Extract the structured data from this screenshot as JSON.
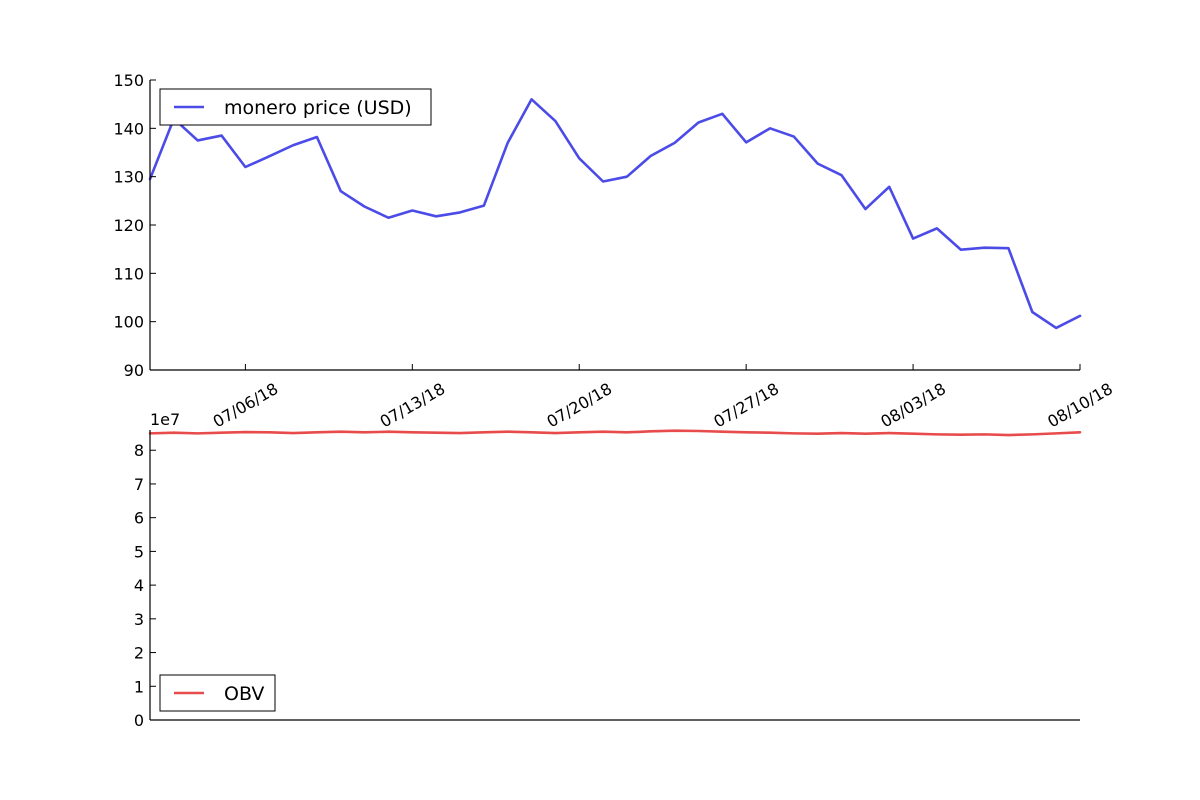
{
  "chart_data": [
    {
      "type": "line",
      "title": "",
      "xlabel": "",
      "ylabel": "",
      "x_tick_labels": [
        "07/06/18",
        "07/13/18",
        "07/20/18",
        "07/27/18",
        "08/03/18",
        "08/10/18"
      ],
      "x_tick_positions": [
        4,
        11,
        18,
        25,
        32,
        39
      ],
      "xlim": [
        0,
        39
      ],
      "ylim": [
        90,
        150
      ],
      "y_ticks": [
        90,
        100,
        110,
        120,
        130,
        140,
        150
      ],
      "grid": false,
      "legend_position": "upper-left",
      "series": [
        {
          "name": "monero price (USD)",
          "color": "#4b4be8",
          "x": [
            0,
            1,
            2,
            3,
            4,
            5,
            6,
            7,
            8,
            9,
            10,
            11,
            12,
            13,
            14,
            15,
            16,
            17,
            18,
            19,
            20,
            21,
            22,
            23,
            24,
            25,
            26,
            27,
            28,
            29,
            30,
            31,
            32,
            33,
            34,
            35,
            36,
            37,
            38,
            39
          ],
          "y": [
            129.5,
            142.0,
            137.5,
            138.5,
            132.0,
            134.2,
            136.5,
            138.2,
            127.0,
            123.8,
            121.5,
            123.0,
            121.8,
            122.6,
            124.0,
            137.0,
            146.0,
            141.5,
            133.8,
            129.0,
            130.0,
            134.3,
            137.0,
            141.2,
            143.0,
            137.1,
            140.0,
            138.3,
            132.7,
            130.3,
            123.3,
            127.9,
            117.2,
            119.3,
            114.9,
            115.3,
            115.2,
            102.0,
            98.7,
            101.2
          ]
        }
      ]
    },
    {
      "type": "line",
      "title": "",
      "xlabel": "",
      "ylabel": "",
      "y_scale_label": "1e7",
      "xlim": [
        0,
        39
      ],
      "ylim": [
        0,
        8.6
      ],
      "y_ticks": [
        0,
        1,
        2,
        3,
        4,
        5,
        6,
        7,
        8
      ],
      "grid": false,
      "legend_position": "lower-left",
      "series": [
        {
          "name": "OBV",
          "color": "#e84b4b",
          "x": [
            0,
            1,
            2,
            3,
            4,
            5,
            6,
            7,
            8,
            9,
            10,
            11,
            12,
            13,
            14,
            15,
            16,
            17,
            18,
            19,
            20,
            21,
            22,
            23,
            24,
            25,
            26,
            27,
            28,
            29,
            30,
            31,
            32,
            33,
            34,
            35,
            36,
            37,
            38,
            39
          ],
          "y": [
            8.5,
            8.52,
            8.5,
            8.52,
            8.54,
            8.53,
            8.51,
            8.53,
            8.55,
            8.53,
            8.55,
            8.53,
            8.52,
            8.51,
            8.53,
            8.55,
            8.53,
            8.51,
            8.53,
            8.55,
            8.53,
            8.56,
            8.58,
            8.57,
            8.55,
            8.53,
            8.52,
            8.5,
            8.49,
            8.51,
            8.49,
            8.51,
            8.49,
            8.47,
            8.46,
            8.47,
            8.45,
            8.47,
            8.5,
            8.53
          ]
        }
      ]
    }
  ]
}
